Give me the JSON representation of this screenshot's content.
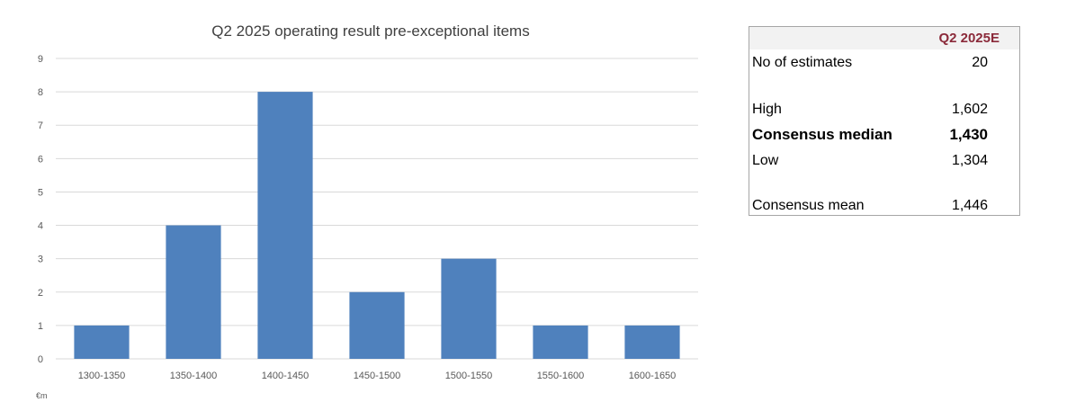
{
  "chart_data": {
    "type": "bar",
    "title": "Q2 2025 operating result pre-exceptional items",
    "categories": [
      "1300-1350",
      "1350-1400",
      "1400-1450",
      "1450-1500",
      "1500-1550",
      "1550-1600",
      "1600-1650"
    ],
    "values": [
      1,
      4,
      8,
      2,
      3,
      1,
      1
    ],
    "ylim": [
      0,
      9
    ],
    "yticks": [
      "0",
      "1",
      "2",
      "3",
      "4",
      "5",
      "6",
      "7",
      "8",
      "9"
    ],
    "unit_label": "€m",
    "grid": true,
    "colors": {
      "bar": "#4f81bd",
      "grid": "#d9d9d9"
    }
  },
  "summary_table": {
    "header": "Q2 2025E",
    "rows": [
      {
        "label": "No of estimates",
        "value": "20"
      },
      {
        "label": "High",
        "value": "1,602"
      },
      {
        "label": "Consensus median",
        "value": "1,430"
      },
      {
        "label": "Low",
        "value": "1,304"
      },
      {
        "label": "Consensus mean",
        "value": "1,446"
      }
    ]
  }
}
